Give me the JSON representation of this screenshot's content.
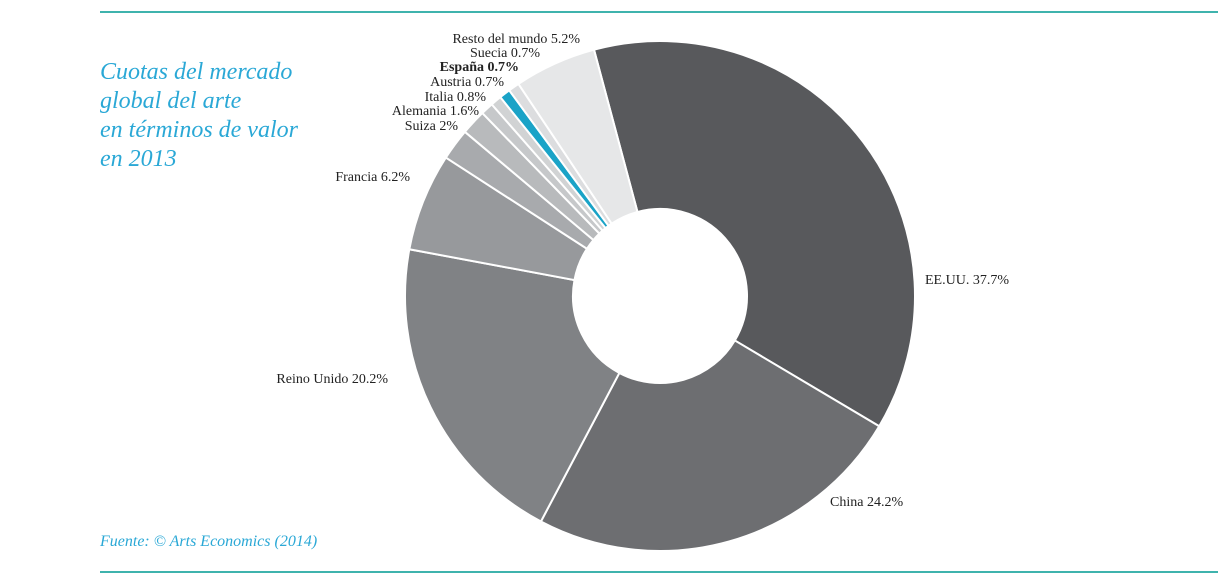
{
  "title_lines": [
    "Cuotas del mercado",
    "global del arte",
    "en términos de valor",
    "en 2013"
  ],
  "source": "Fuente: © Arts Economics (2014)",
  "colors": {
    "accent": "#1aa3c7",
    "rule": "#3fb3ad",
    "title": "#2aa8d6"
  },
  "chart_data": {
    "type": "pie",
    "donut": true,
    "title": "Cuotas del mercado global del arte en términos de valor en 2013",
    "unit": "%",
    "slices": [
      {
        "label": "EE.UU. 37.7%",
        "value": 37.7,
        "color": "#58595c",
        "highlight": false
      },
      {
        "label": "China 24.2%",
        "value": 24.2,
        "color": "#6d6e71",
        "highlight": false
      },
      {
        "label": "Reino Unido 20.2%",
        "value": 20.2,
        "color": "#808285",
        "highlight": false
      },
      {
        "label": "Francia 6.2%",
        "value": 6.2,
        "color": "#97999c",
        "highlight": false
      },
      {
        "label": "Suiza 2%",
        "value": 2.0,
        "color": "#a8aaad",
        "highlight": false
      },
      {
        "label": "Alemania 1.6%",
        "value": 1.6,
        "color": "#b8babc",
        "highlight": false
      },
      {
        "label": "Italia 0.8%",
        "value": 0.8,
        "color": "#c6c8ca",
        "highlight": false
      },
      {
        "label": "Austria 0.7%",
        "value": 0.7,
        "color": "#d1d3d4",
        "highlight": false
      },
      {
        "label": "España 0.7%",
        "value": 0.7,
        "color": "#1aa3c7",
        "highlight": true
      },
      {
        "label": "Suecia 0.7%",
        "value": 0.7,
        "color": "#dcdddf",
        "highlight": false
      },
      {
        "label": "Resto del mundo 5.2%",
        "value": 5.2,
        "color": "#e6e7e8",
        "highlight": false
      }
    ]
  }
}
